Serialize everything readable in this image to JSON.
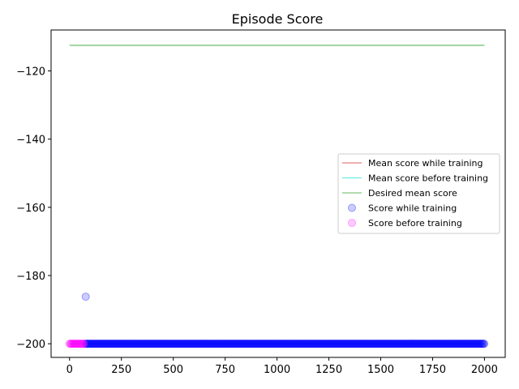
{
  "chart_data": {
    "type": "scatter",
    "title": "Episode Score",
    "xlabel": "",
    "ylabel": "",
    "xlim": [
      -89,
      2100
    ],
    "ylim": [
      -204,
      -108
    ],
    "x_ticks": [
      0,
      250,
      500,
      750,
      1000,
      1250,
      1500,
      1750,
      2000
    ],
    "y_ticks": [
      -120,
      -140,
      -160,
      -180,
      -200
    ],
    "grid": false,
    "legend": "center-right",
    "series": [
      {
        "name": "Mean score while training",
        "kind": "line",
        "color": "#d62728",
        "x": [
          0,
          2000
        ],
        "y": [
          -200,
          -200
        ]
      },
      {
        "name": "Mean score before training",
        "kind": "line",
        "color": "#17e3e3",
        "x": [
          0,
          2000
        ],
        "y": [
          -200,
          -200
        ]
      },
      {
        "name": "Desired mean score",
        "kind": "line",
        "color": "#2ca02c",
        "x": [
          0,
          2000
        ],
        "y": [
          -112.5,
          -112.5
        ]
      },
      {
        "name": "Score while training",
        "kind": "scatter",
        "color": "#0000ff",
        "x_range": [
          75,
          2000
        ],
        "y": -200,
        "outliers": [
          {
            "x": 78,
            "y": -186.2
          }
        ]
      },
      {
        "name": "Score before training",
        "kind": "scatter",
        "color": "#ff00ff",
        "x_range": [
          0,
          70
        ],
        "y": -200
      }
    ]
  }
}
